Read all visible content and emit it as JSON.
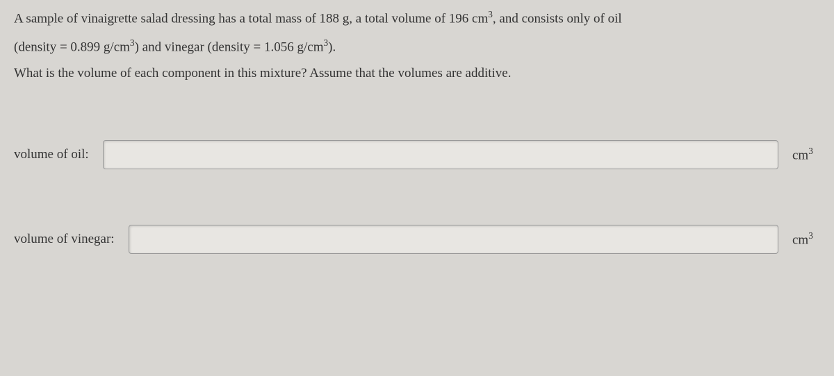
{
  "problem": {
    "line1_part1": "A sample of vinaigrette salad dressing has a total mass of 188 g, a total volume of 196 cm",
    "line1_sup": "3",
    "line1_part2": ", and consists only of oil",
    "line2_part1": "(density = 0.899 g/cm",
    "line2_sup1": "3",
    "line2_part2": ") and vinegar (density = 1.056 g/cm",
    "line2_sup2": "3",
    "line2_part3": ").",
    "question": "What is the volume of each component in this mixture? Assume that the volumes are additive."
  },
  "inputs": {
    "oil": {
      "label": "volume of oil:",
      "value": "",
      "unit_base": "cm",
      "unit_sup": "3"
    },
    "vinegar": {
      "label": "volume of vinegar:",
      "value": "",
      "unit_base": "cm",
      "unit_sup": "3"
    }
  },
  "colors": {
    "background": "#d8d6d2",
    "text": "#333333",
    "input_bg": "#e8e6e2",
    "input_border": "#999999"
  }
}
